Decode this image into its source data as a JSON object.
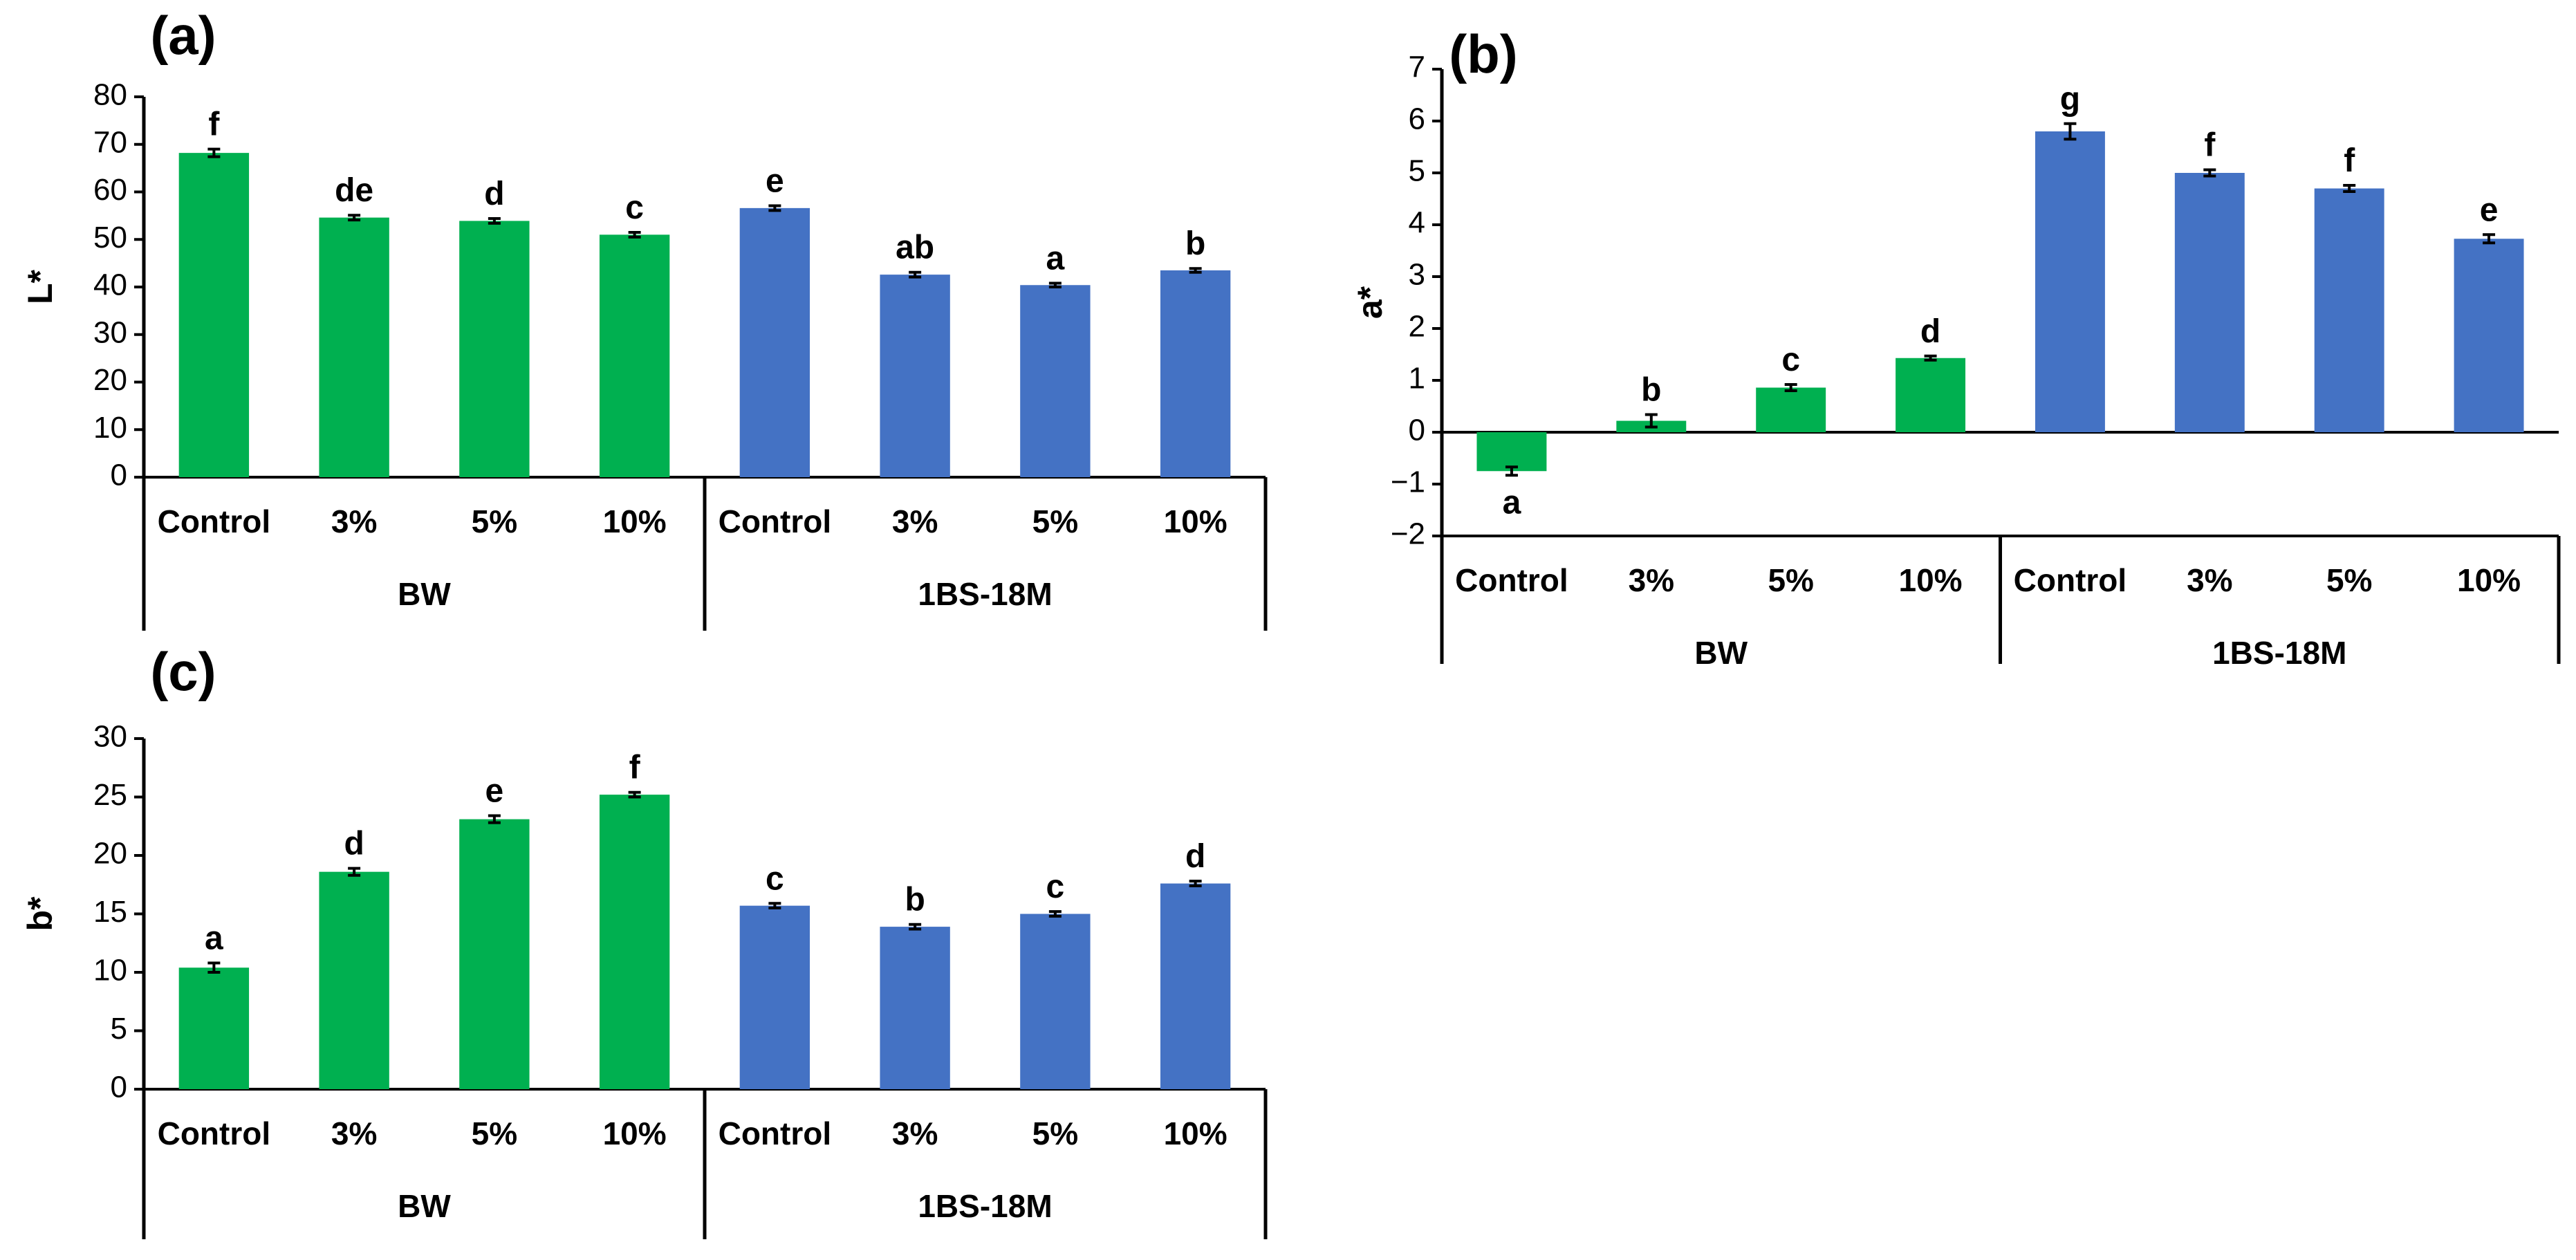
{
  "colors": {
    "BW": "#00b050",
    "1BS-18M": "#4472c4",
    "axis": "#000000"
  },
  "chart_data": [
    {
      "type": "bar",
      "panel": "(a)",
      "ylabel": "L*",
      "ylim": [
        0,
        80
      ],
      "yticks": [
        0,
        10,
        20,
        30,
        40,
        50,
        60,
        70,
        80
      ],
      "groups": [
        {
          "name": "BW",
          "color": "BW",
          "categories": [
            "Control",
            "3%",
            "5%",
            "10%"
          ],
          "values": [
            68.2,
            54.6,
            53.9,
            51.0
          ],
          "errors": [
            0.8,
            0.5,
            0.5,
            0.5
          ],
          "letters": [
            "f",
            "de",
            "d",
            "c"
          ]
        },
        {
          "name": "1BS-18M",
          "color": "1BS-18M",
          "categories": [
            "Control",
            "3%",
            "5%",
            "10%"
          ],
          "values": [
            56.6,
            42.6,
            40.4,
            43.5
          ],
          "errors": [
            0.5,
            0.5,
            0.4,
            0.4
          ],
          "letters": [
            "e",
            "ab",
            "a",
            "b"
          ]
        }
      ]
    },
    {
      "type": "bar",
      "panel": "(b)",
      "ylabel": "a*",
      "ylim": [
        -2,
        7
      ],
      "yticks": [
        -2,
        -1,
        0,
        1,
        2,
        3,
        4,
        5,
        6,
        7
      ],
      "groups": [
        {
          "name": "BW",
          "color": "BW",
          "categories": [
            "Control",
            "3%",
            "5%",
            "10%"
          ],
          "values": [
            -0.75,
            0.22,
            0.86,
            1.43
          ],
          "errors": [
            0.08,
            0.12,
            0.06,
            0.04
          ],
          "letters": [
            "a",
            "b",
            "c",
            "d"
          ]
        },
        {
          "name": "1BS-18M",
          "color": "1BS-18M",
          "categories": [
            "Control",
            "3%",
            "5%",
            "10%"
          ],
          "values": [
            5.8,
            5.0,
            4.7,
            3.73
          ],
          "errors": [
            0.15,
            0.06,
            0.06,
            0.08
          ],
          "letters": [
            "g",
            "f",
            "f",
            "e"
          ]
        }
      ]
    },
    {
      "type": "bar",
      "panel": "(c)",
      "ylabel": "b*",
      "ylim": [
        0,
        30
      ],
      "yticks": [
        0,
        5,
        10,
        15,
        20,
        25,
        30
      ],
      "groups": [
        {
          "name": "BW",
          "color": "BW",
          "categories": [
            "Control",
            "3%",
            "5%",
            "10%"
          ],
          "values": [
            10.4,
            18.6,
            23.1,
            25.2
          ],
          "errors": [
            0.4,
            0.3,
            0.3,
            0.2
          ],
          "letters": [
            "a",
            "d",
            "e",
            "f"
          ]
        },
        {
          "name": "1BS-18M",
          "color": "1BS-18M",
          "categories": [
            "Control",
            "3%",
            "5%",
            "10%"
          ],
          "values": [
            15.7,
            13.9,
            15.0,
            17.6
          ],
          "errors": [
            0.2,
            0.2,
            0.2,
            0.2
          ],
          "letters": [
            "c",
            "b",
            "c",
            "d"
          ]
        }
      ]
    }
  ]
}
